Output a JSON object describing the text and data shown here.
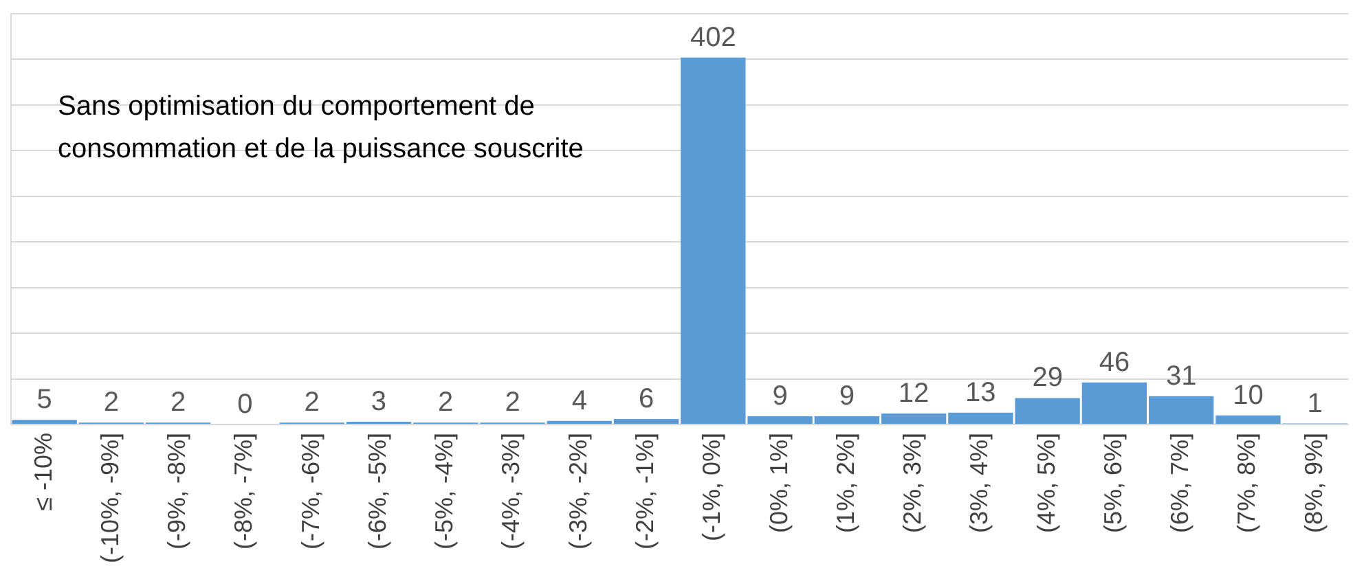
{
  "chart_data": {
    "type": "bar",
    "categories": [
      "≤ -10%",
      "(-10%, -9%]",
      "(-9%, -8%]",
      "(-8%, -7%]",
      "(-7%, -6%]",
      "(-6%, -5%]",
      "(-5%, -4%]",
      "(-4%, -3%]",
      "(-3%, -2%]",
      "(-2%, -1%]",
      "(-1%, 0%]",
      "(0%, 1%]",
      "(1%, 2%]",
      "(2%, 3%]",
      "(3%, 4%]",
      "(4%, 5%]",
      "(5%, 6%]",
      "(6%, 7%]",
      "(7%, 8%]",
      "(8%, 9%]"
    ],
    "values": [
      5,
      2,
      2,
      0,
      2,
      3,
      2,
      2,
      4,
      6,
      402,
      9,
      9,
      12,
      13,
      29,
      46,
      31,
      10,
      1
    ],
    "color": "#5b9bd5",
    "ylim": [
      0,
      450
    ],
    "yticks": [
      0,
      50,
      100,
      150,
      200,
      250,
      300,
      350,
      400,
      450
    ],
    "tick_labels": "x",
    "grid": "y",
    "data_labels": true,
    "annotations": [
      "Sans optimisation du comportement de consommation et de la puissance souscrite"
    ]
  }
}
